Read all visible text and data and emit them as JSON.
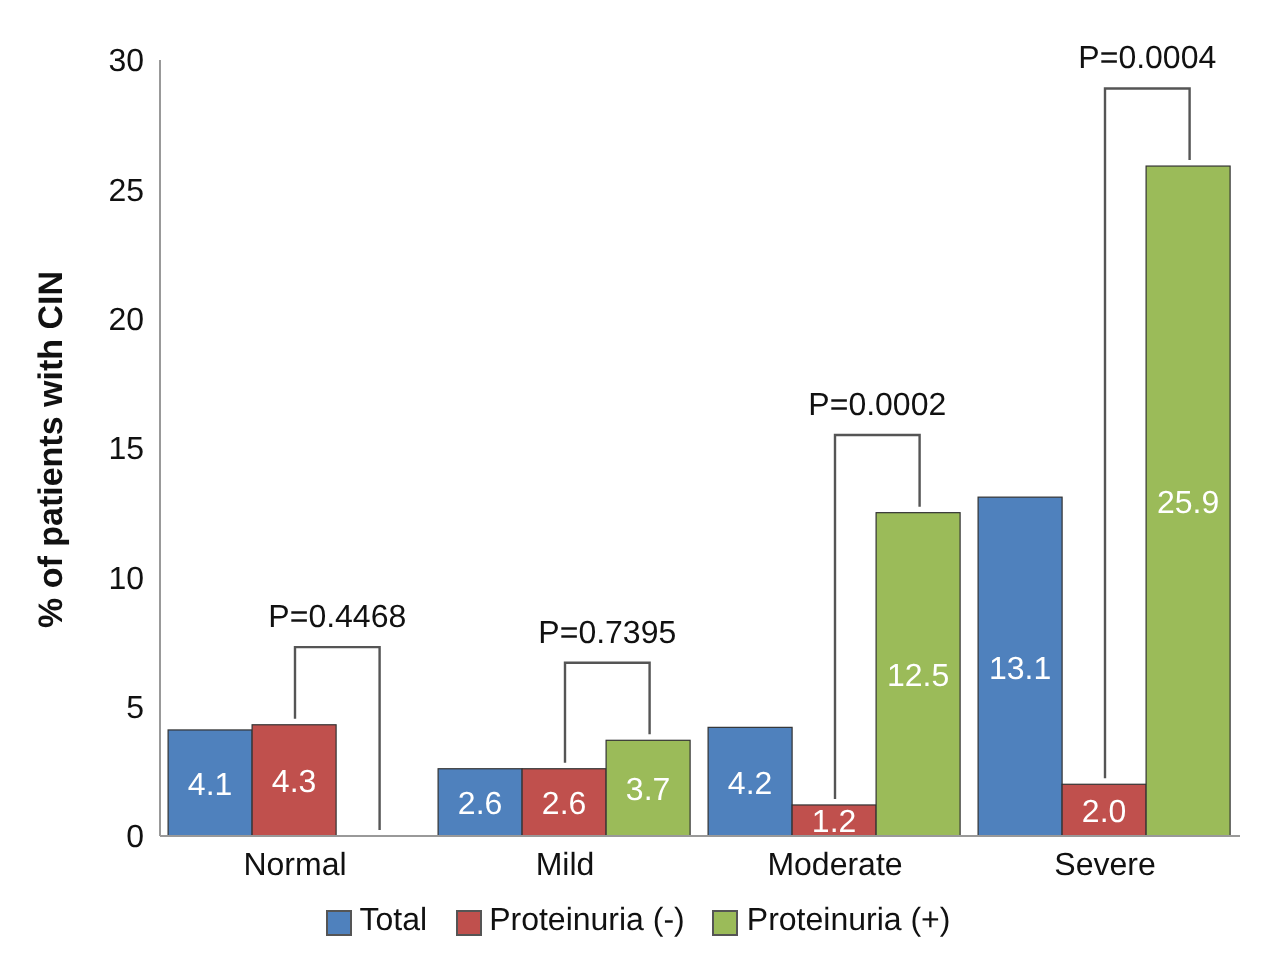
{
  "chart_data": {
    "type": "bar",
    "ylabel": "% of patients with CIN",
    "categories": [
      "Normal",
      "Mild",
      "Moderate",
      "Severe"
    ],
    "series": [
      {
        "name": "Total",
        "color": "#4f81bd",
        "values": [
          4.1,
          2.6,
          4.2,
          13.1
        ],
        "value_labels": [
          "4.1",
          "2.6",
          "4.2",
          "13.1"
        ]
      },
      {
        "name": "Proteinuria (-)",
        "color": "#c0504d",
        "values": [
          4.3,
          2.6,
          1.2,
          2.0
        ],
        "value_labels": [
          "4.3",
          "2.6",
          "1.2",
          "2.0"
        ]
      },
      {
        "name": "Proteinuria (+)",
        "color": "#9bbb59",
        "values": [
          0,
          3.7,
          12.5,
          25.9
        ],
        "value_labels": [
          null,
          "3.7",
          "12.5",
          "25.9"
        ]
      }
    ],
    "ylim": [
      0,
      30
    ],
    "yticks": [
      0,
      5,
      10,
      15,
      20,
      25,
      30
    ],
    "grid": false,
    "legend": "bottom",
    "annotations": [
      "P=0.4468",
      "P=0.7395",
      "P=0.0002",
      "P=0.0004"
    ]
  }
}
